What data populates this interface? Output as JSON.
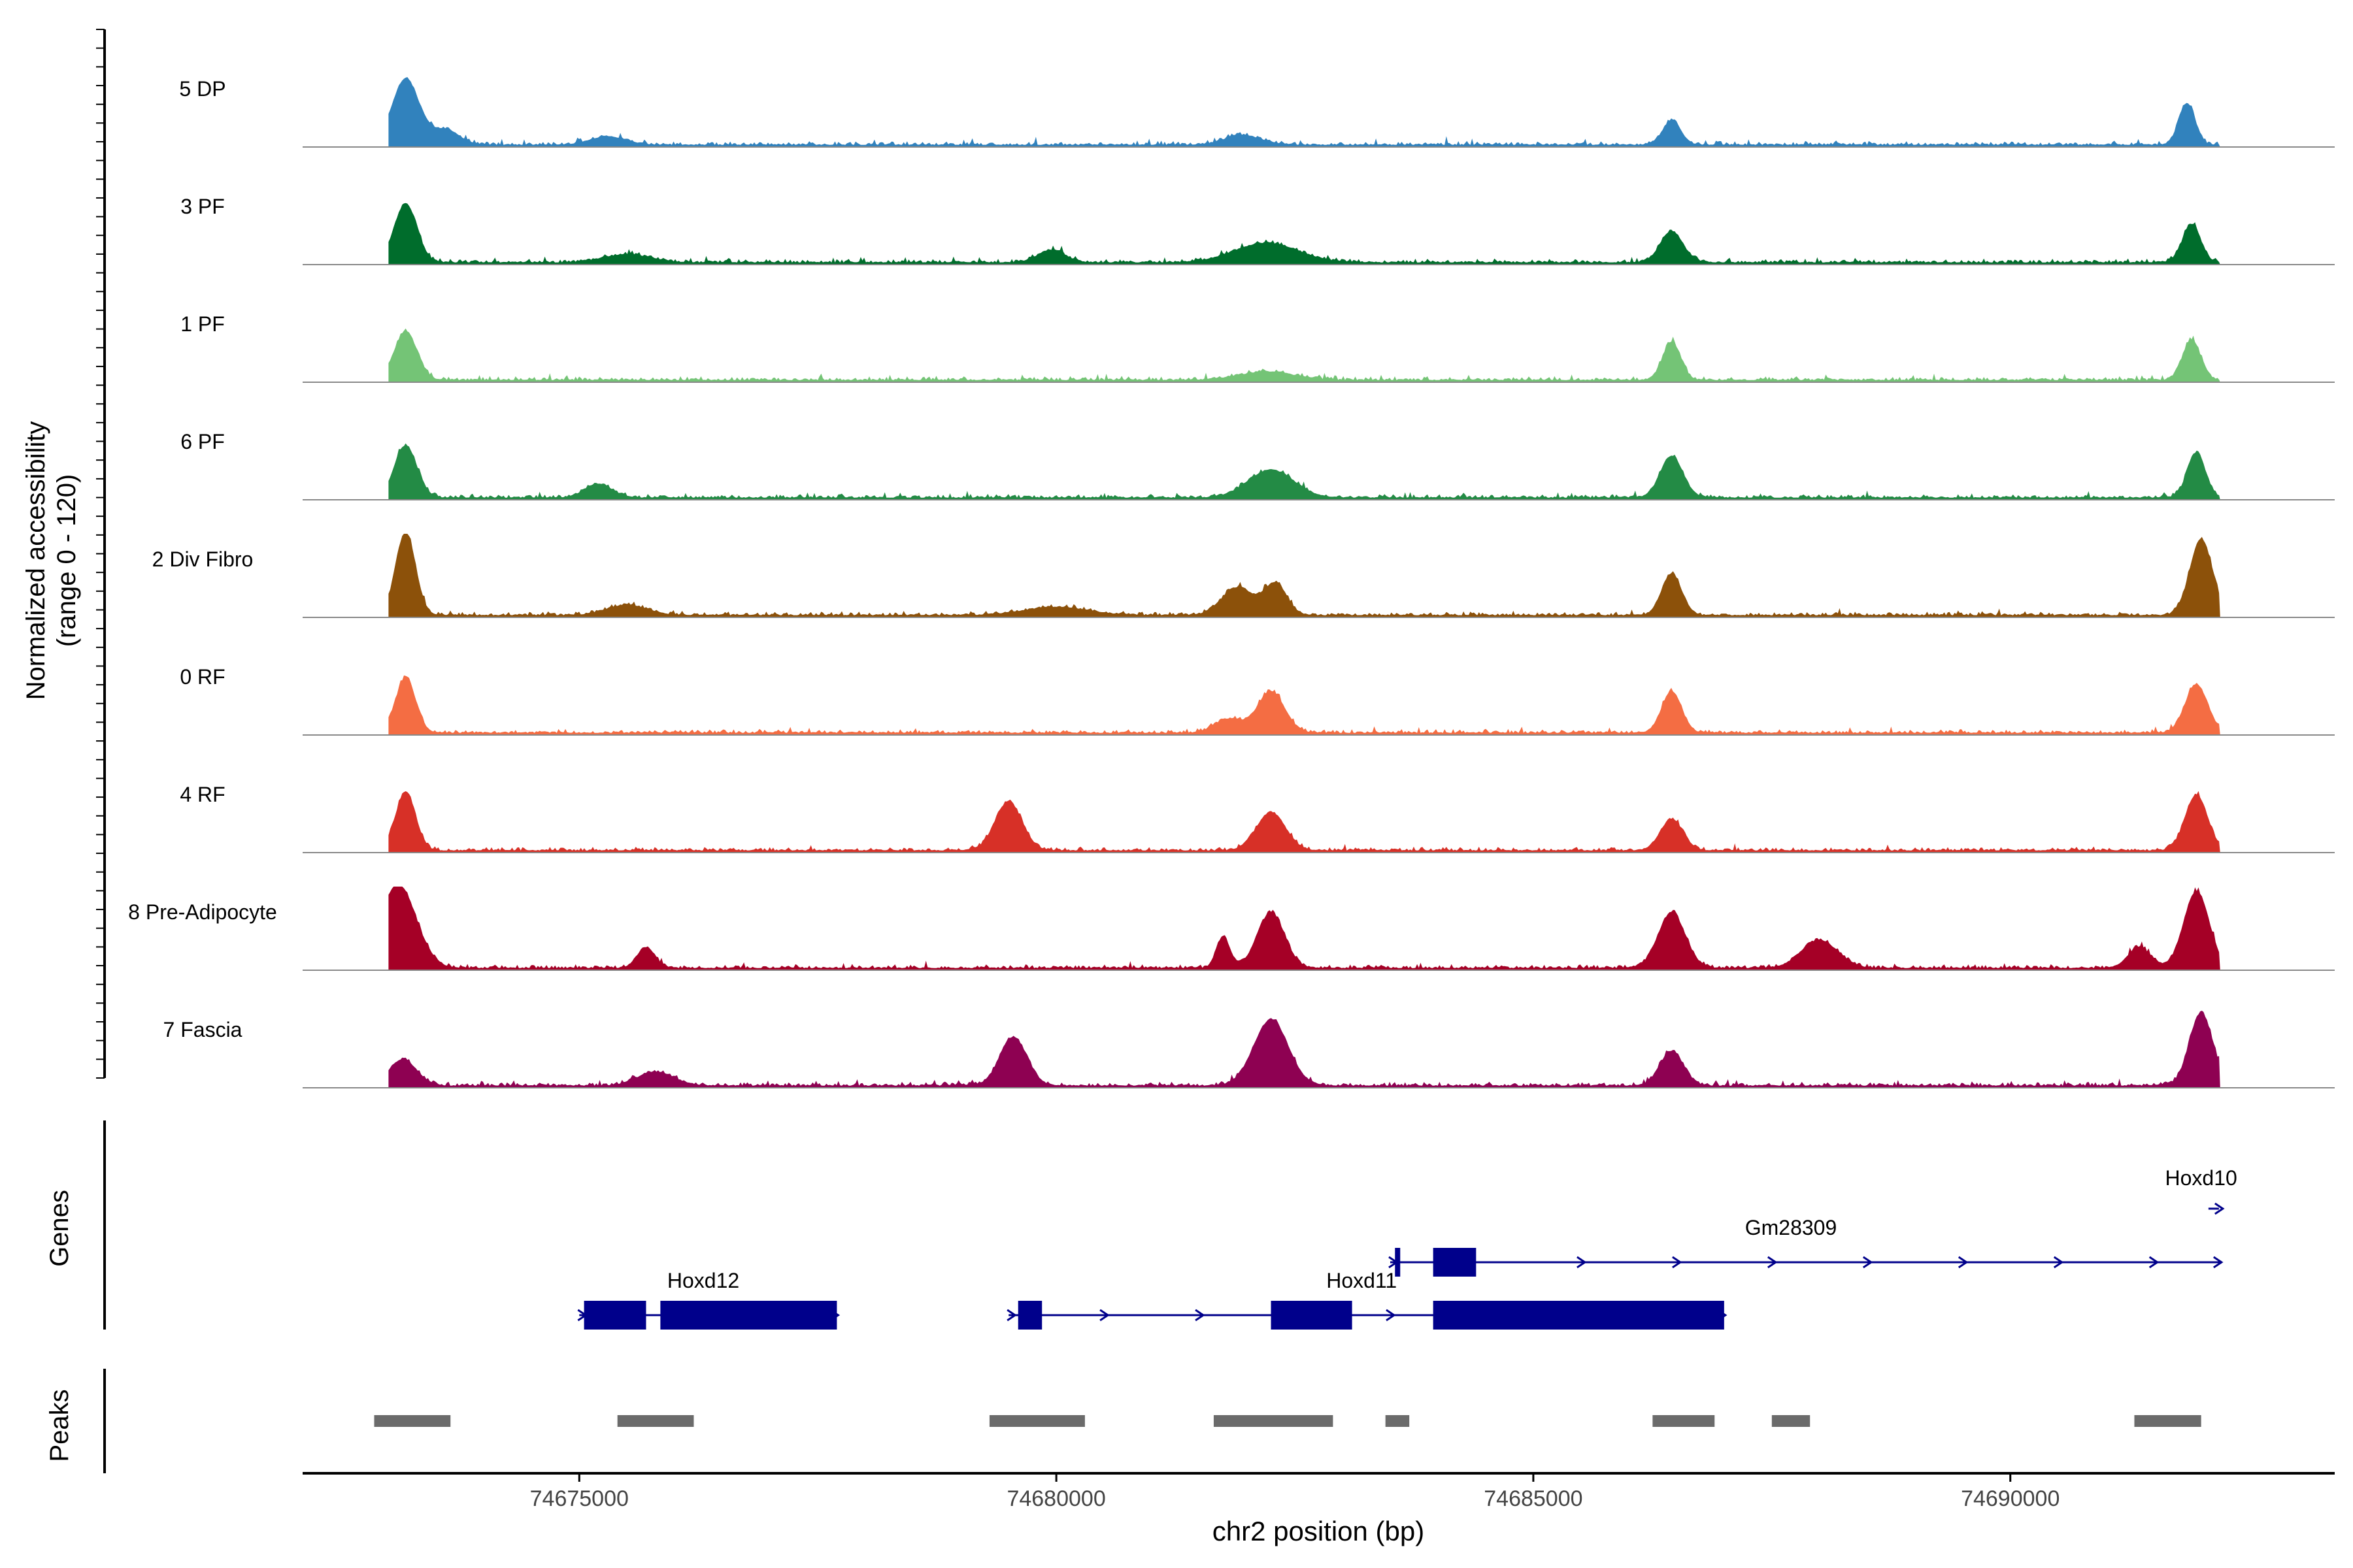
{
  "chart_data": {
    "type": "coverage_track",
    "chromosome": "chr2",
    "xlabel": "chr2 position (bp)",
    "xlim": [
      74672100,
      74693400
    ],
    "x_ticks": [
      74675000,
      74680000,
      74685000,
      74690000
    ],
    "x_tick_labels": [
      "74675000",
      "74680000",
      "74685000",
      "74690000"
    ],
    "data_range": [
      74673000,
      74692200
    ],
    "ylabel_line1": "Normalized accessibility",
    "ylabel_line2": "(range 0 - 120)",
    "ylim": [
      0,
      120
    ],
    "tracks": [
      {
        "name": "5 DP",
        "color": "#3182BD",
        "peaks": [
          [
            74673180,
            300,
            95
          ],
          [
            74673600,
            300,
            22
          ],
          [
            74686450,
            200,
            35
          ],
          [
            74691850,
            180,
            60
          ],
          [
            74681950,
            400,
            14
          ],
          [
            74675300,
            400,
            12
          ]
        ]
      },
      {
        "name": "3 PF",
        "color": "#006D2C",
        "peaks": [
          [
            74673180,
            250,
            85
          ],
          [
            74686450,
            250,
            45
          ],
          [
            74682200,
            700,
            28
          ],
          [
            74679950,
            300,
            18
          ],
          [
            74691900,
            200,
            55
          ],
          [
            74675500,
            500,
            12
          ]
        ]
      },
      {
        "name": "1 PF",
        "color": "#74C476",
        "peaks": [
          [
            74673180,
            250,
            70
          ],
          [
            74686450,
            200,
            55
          ],
          [
            74691900,
            200,
            58
          ],
          [
            74672850,
            150,
            15
          ],
          [
            74682200,
            600,
            12
          ]
        ]
      },
      {
        "name": "6 PF",
        "color": "#238B45",
        "peaks": [
          [
            74673180,
            250,
            75
          ],
          [
            74686450,
            250,
            60
          ],
          [
            74682250,
            500,
            40
          ],
          [
            74691950,
            200,
            65
          ],
          [
            74675200,
            300,
            20
          ]
        ]
      },
      {
        "name": "2 Div Fibro",
        "color": "#8C510A",
        "peaks": [
          [
            74673180,
            220,
            120
          ],
          [
            74686450,
            220,
            60
          ],
          [
            74681900,
            350,
            40
          ],
          [
            74682300,
            250,
            45
          ],
          [
            74692000,
            250,
            110
          ],
          [
            74675500,
            450,
            15
          ],
          [
            74680000,
            700,
            12
          ]
        ]
      },
      {
        "name": "0 RF",
        "color": "#F46D43",
        "peaks": [
          [
            74673180,
            220,
            80
          ],
          [
            74682250,
            300,
            60
          ],
          [
            74686450,
            220,
            60
          ],
          [
            74691950,
            250,
            70
          ],
          [
            74672850,
            150,
            30
          ],
          [
            74681800,
            300,
            20
          ]
        ]
      },
      {
        "name": "4 RF",
        "color": "#D73027",
        "peaks": [
          [
            74673180,
            220,
            85
          ],
          [
            74679500,
            300,
            70
          ],
          [
            74682250,
            320,
            55
          ],
          [
            74686450,
            250,
            45
          ],
          [
            74691950,
            250,
            80
          ],
          [
            74672850,
            150,
            20
          ]
        ]
      },
      {
        "name": "8 Pre-Adipocyte",
        "color": "#A50026",
        "peaks": [
          [
            74673100,
            400,
            120
          ],
          [
            74675700,
            200,
            30
          ],
          [
            74681750,
            150,
            45
          ],
          [
            74682250,
            300,
            80
          ],
          [
            74686450,
            300,
            80
          ],
          [
            74688000,
            400,
            40
          ],
          [
            74691950,
            280,
            110
          ],
          [
            74691350,
            250,
            30
          ]
        ]
      },
      {
        "name": "7 Fascia",
        "color": "#8E0152",
        "peaks": [
          [
            74673150,
            300,
            38
          ],
          [
            74679550,
            300,
            70
          ],
          [
            74682250,
            380,
            95
          ],
          [
            74686450,
            260,
            50
          ],
          [
            74692000,
            260,
            105
          ],
          [
            74675800,
            400,
            20
          ]
        ]
      }
    ],
    "genes": [
      {
        "name": "Hoxd12",
        "strand": "+",
        "start": 74675000,
        "end": 74677700,
        "exons": [
          [
            74675050,
            74675700
          ],
          [
            74675850,
            74677700
          ]
        ],
        "label_x": 74676300,
        "row": 2
      },
      {
        "name": "Hoxd11",
        "strand": "+",
        "start": 74679500,
        "end": 74687000,
        "exons": [
          [
            74679600,
            74679850
          ],
          [
            74682250,
            74683100
          ],
          [
            74683950,
            74687000
          ]
        ],
        "label_x": 74683200,
        "row": 2
      },
      {
        "name": "Gm28309",
        "strand": "+",
        "start": 74683500,
        "end": 74692200,
        "exons": [
          [
            74683550,
            74683600
          ],
          [
            74683950,
            74684400
          ]
        ],
        "label_x": 74687700,
        "row": 1
      },
      {
        "name": "Hoxd10",
        "strand": "+",
        "start": 74691950,
        "end": 74692200,
        "exons": [],
        "label_x": 74692000,
        "row": 0
      }
    ],
    "peaks": [
      [
        74672850,
        74673650
      ],
      [
        74675400,
        74676200
      ],
      [
        74679300,
        74680300
      ],
      [
        74681650,
        74682900
      ],
      [
        74683450,
        74683700
      ],
      [
        74686250,
        74686900
      ],
      [
        74687500,
        74687900
      ],
      [
        74691300,
        74692000
      ]
    ],
    "peaks_color": "#6B6B6B",
    "genes_color": "#00008B",
    "panel_labels": {
      "genes": "Genes",
      "peaks": "Peaks"
    }
  }
}
